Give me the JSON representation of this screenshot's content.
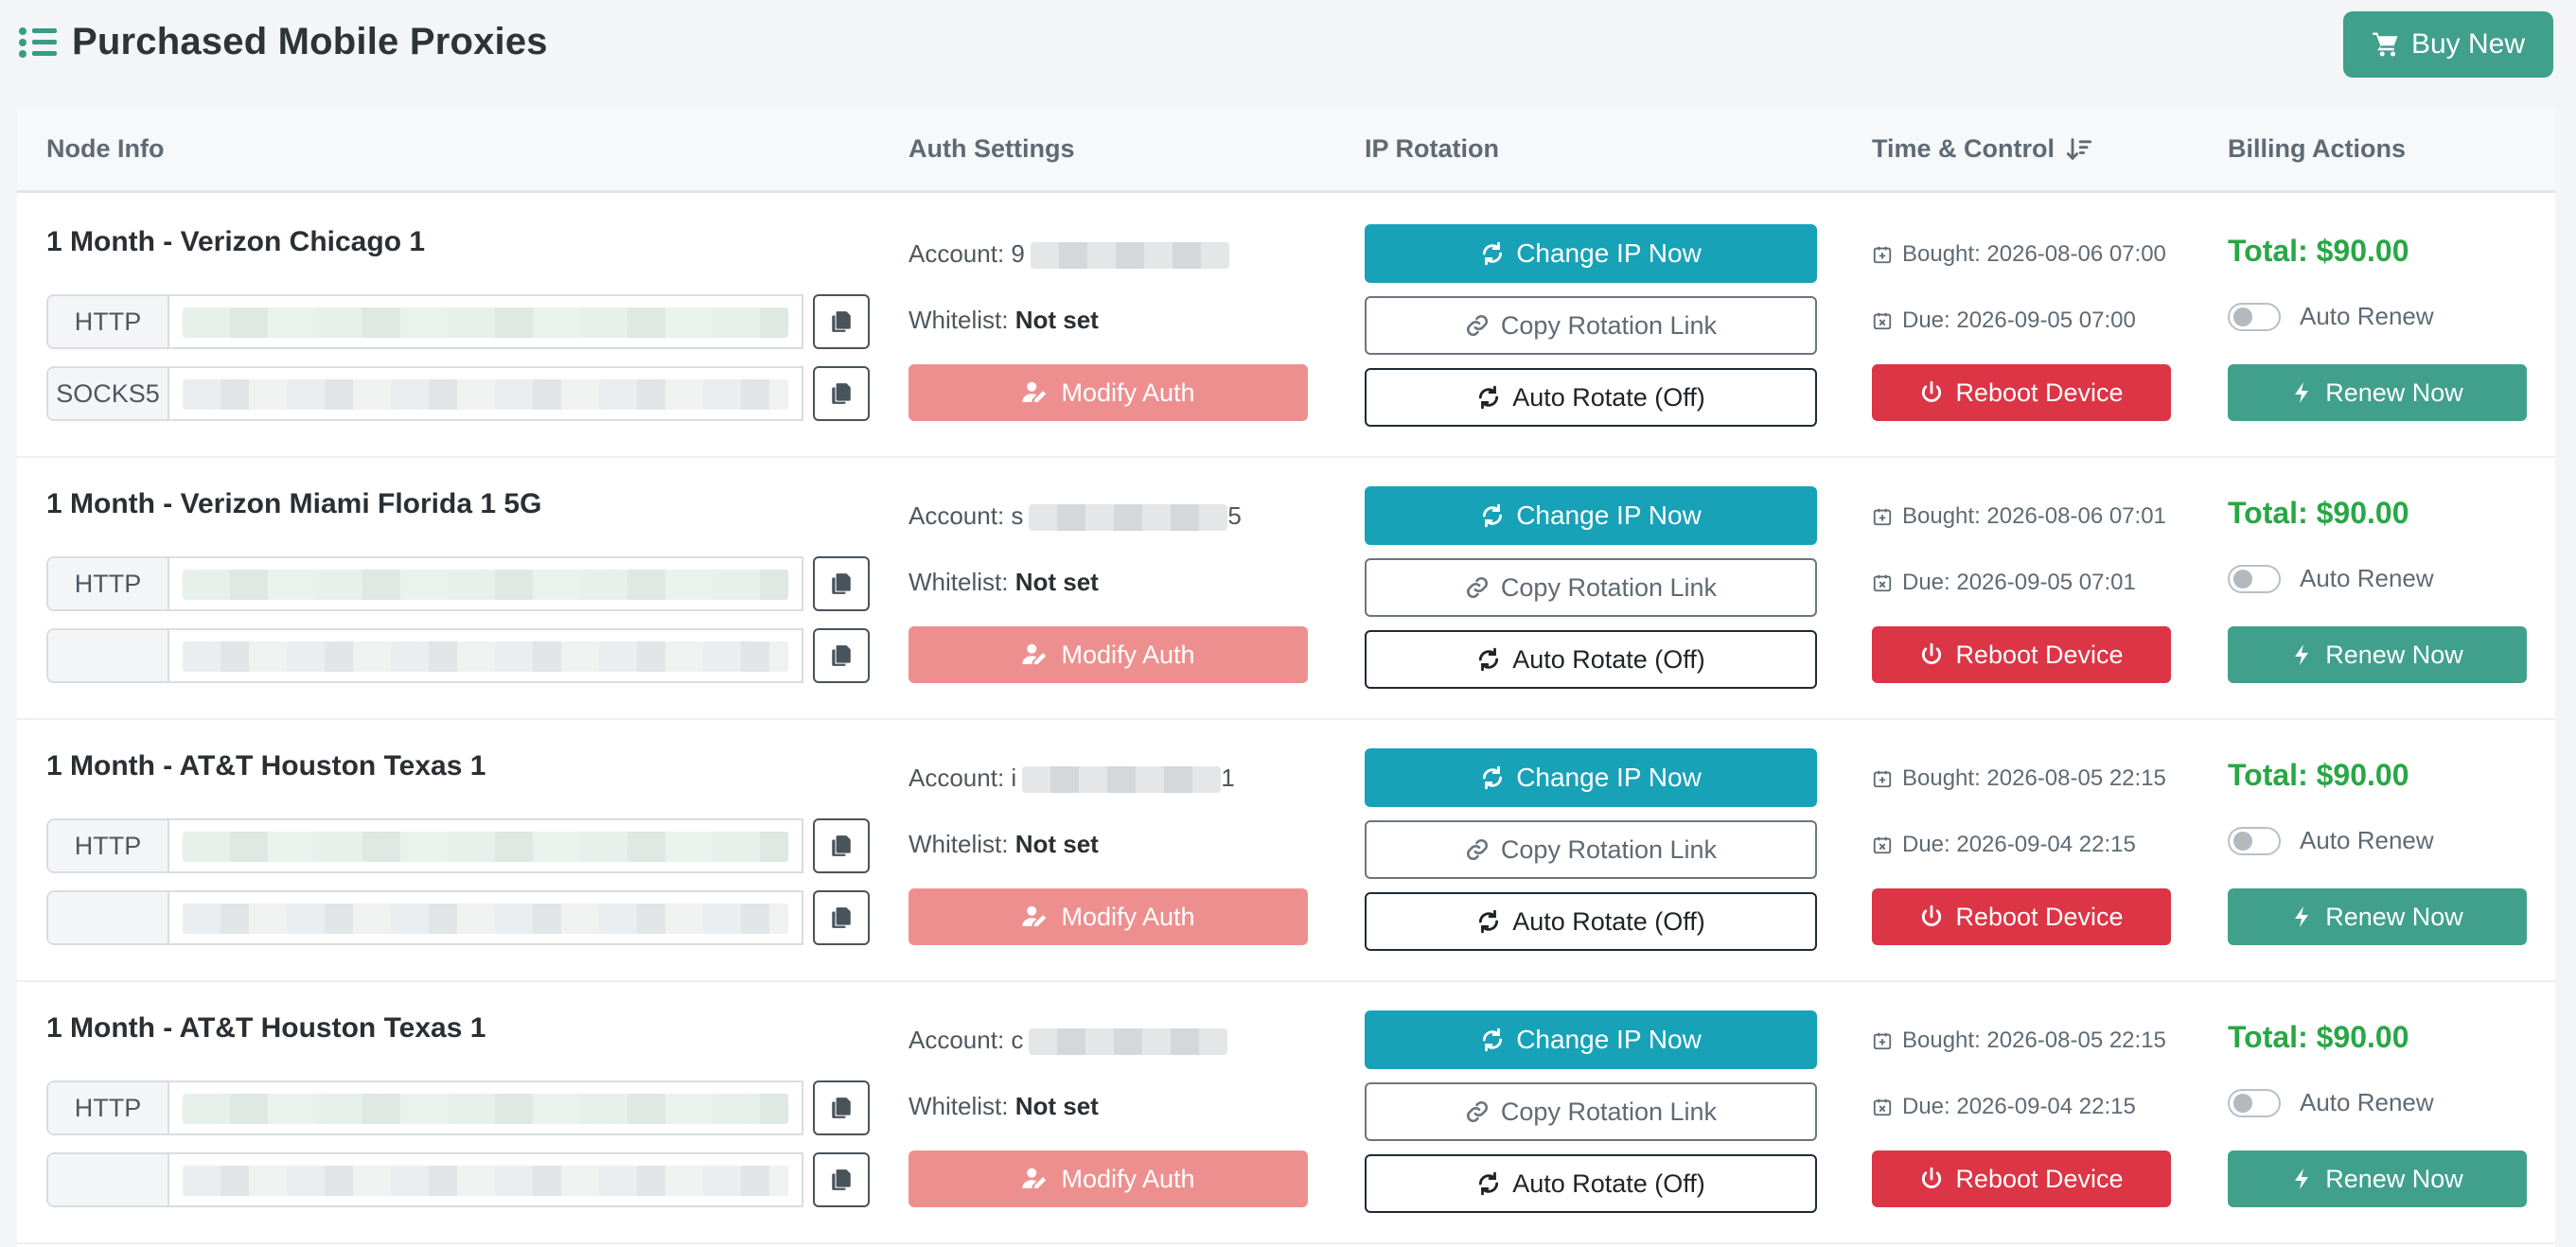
{
  "header": {
    "title": "Purchased Mobile Proxies",
    "buy_label": "Buy New"
  },
  "columns": {
    "node_info": "Node Info",
    "auth": "Auth Settings",
    "rotation": "IP Rotation",
    "time": "Time & Control",
    "billing": "Billing Actions"
  },
  "labels": {
    "account": "Account:",
    "whitelist": "Whitelist:",
    "modify_auth": "Modify Auth",
    "change_ip": "Change IP Now",
    "copy_link": "Copy Rotation Link",
    "auto_rotate": "Auto Rotate (Off)",
    "reboot": "Reboot Device",
    "auto_renew": "Auto Renew",
    "renew_now": "Renew Now",
    "bought_prefix": "Bought: ",
    "due_prefix": "Due: "
  },
  "colors": {
    "brand": "#40a08c",
    "change_ip": "#17a2b8",
    "modify_auth": "#ee8f8f",
    "reboot": "#dc3545",
    "total": "#28a745"
  },
  "icons": {
    "title": "list-icon",
    "buy": "cart-icon",
    "sort": "sort-desc-icon",
    "copy": "copy-icon",
    "modify": "user-edit-icon",
    "change": "refresh-icon",
    "link": "link-icon",
    "auto": "refresh-icon",
    "bought": "calendar-plus-icon",
    "due": "calendar-x-icon",
    "reboot": "power-icon",
    "renew": "bolt-icon"
  },
  "rows": [
    {
      "name": "1 Month - Verizon Chicago 1",
      "proxies": [
        {
          "type": "HTTP",
          "value": ""
        },
        {
          "type": "SOCKS5",
          "value": "0"
        }
      ],
      "account_prefix": "9",
      "account_suffix": "",
      "whitelist": "Not set",
      "bought": "2026-08-06 07:00",
      "due": "2026-09-05 07:00",
      "total": "Total: $90.00",
      "auto_renew": false
    },
    {
      "name": "1 Month - Verizon Miami Florida 1 5G",
      "proxies": [
        {
          "type": "HTTP",
          "value": ""
        },
        {
          "type": "",
          "value": ""
        }
      ],
      "account_prefix": "s",
      "account_suffix": "5",
      "whitelist": "Not set",
      "bought": "2026-08-06 07:01",
      "due": "2026-09-05 07:01",
      "total": "Total: $90.00",
      "auto_renew": false
    },
    {
      "name": "1 Month - AT&T Houston Texas 1",
      "proxies": [
        {
          "type": "HTTP",
          "value": ""
        },
        {
          "type": "",
          "value": ""
        }
      ],
      "account_prefix": "i",
      "account_suffix": "1",
      "whitelist": "Not set",
      "bought": "2026-08-05 22:15",
      "due": "2026-09-04 22:15",
      "total": "Total: $90.00",
      "auto_renew": false
    },
    {
      "name": "1 Month - AT&T Houston Texas 1",
      "proxies": [
        {
          "type": "HTTP",
          "value": ""
        },
        {
          "type": "",
          "value": ""
        }
      ],
      "account_prefix": "c",
      "account_suffix": "",
      "whitelist": "Not set",
      "bought": "2026-08-05 22:15",
      "due": "2026-09-04 22:15",
      "total": "Total: $90.00",
      "auto_renew": false
    }
  ]
}
